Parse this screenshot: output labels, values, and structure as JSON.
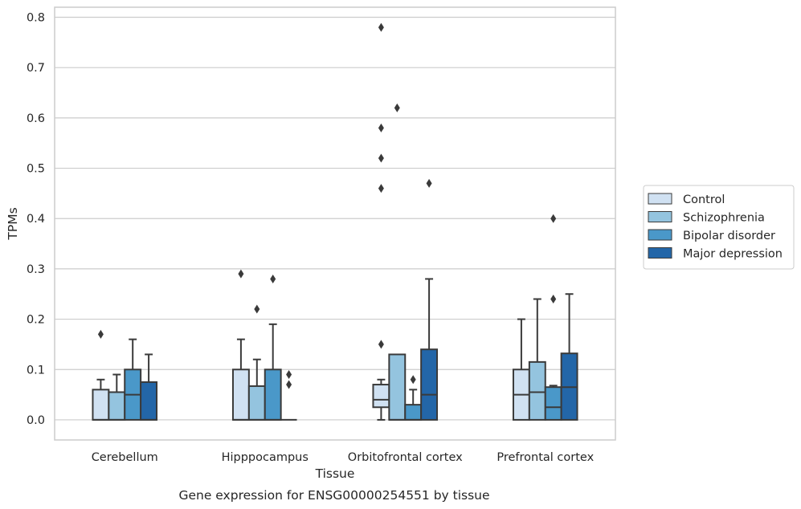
{
  "chart_data": {
    "type": "box",
    "title": "",
    "caption": "Gene expression for ENSG00000254551 by tissue",
    "xlabel": "Tissue",
    "ylabel": "TPMs",
    "ylim": [
      -0.04,
      0.82
    ],
    "yticks": [
      "0.0",
      "0.1",
      "0.2",
      "0.3",
      "0.4",
      "0.5",
      "0.6",
      "0.7",
      "0.8"
    ],
    "ytick_values": [
      0,
      0.1,
      0.2,
      0.3,
      0.4,
      0.5,
      0.6,
      0.7,
      0.8
    ],
    "grid": "horizontal",
    "legend_position": "right",
    "categories": [
      "Cerebellum",
      "Hipppocampus",
      "Orbitofrontal cortex",
      "Prefrontal cortex"
    ],
    "series": [
      {
        "name": "Control",
        "color": "#d0e1f2",
        "boxes": [
          {
            "q1": 0.0,
            "median": 0.0,
            "q3": 0.06,
            "whislo": 0.0,
            "whishi": 0.08,
            "fliers": [
              0.17
            ]
          },
          {
            "q1": 0.0,
            "median": 0.0,
            "q3": 0.1,
            "whislo": 0.0,
            "whishi": 0.16,
            "fliers": [
              0.29
            ]
          },
          {
            "q1": 0.025,
            "median": 0.04,
            "q3": 0.07,
            "whislo": 0.0,
            "whishi": 0.08,
            "fliers": [
              0.15,
              0.46,
              0.52,
              0.58,
              0.78
            ]
          },
          {
            "q1": 0.0,
            "median": 0.05,
            "q3": 0.1,
            "whislo": 0.0,
            "whishi": 0.2,
            "fliers": []
          }
        ]
      },
      {
        "name": "Schizophrenia",
        "color": "#94c4df",
        "boxes": [
          {
            "q1": 0.0,
            "median": 0.0,
            "q3": 0.055,
            "whislo": 0.0,
            "whishi": 0.09,
            "fliers": []
          },
          {
            "q1": 0.0,
            "median": 0.0,
            "q3": 0.067,
            "whislo": 0.0,
            "whishi": 0.12,
            "fliers": [
              0.22
            ]
          },
          {
            "q1": 0.0,
            "median": 0.0,
            "q3": 0.13,
            "whislo": 0.0,
            "whishi": 0.13,
            "fliers": [
              0.62
            ]
          },
          {
            "q1": 0.0,
            "median": 0.055,
            "q3": 0.115,
            "whislo": 0.0,
            "whishi": 0.24,
            "fliers": []
          }
        ]
      },
      {
        "name": "Bipolar disorder",
        "color": "#4a98c9",
        "boxes": [
          {
            "q1": 0.0,
            "median": 0.05,
            "q3": 0.1,
            "whislo": 0.0,
            "whishi": 0.16,
            "fliers": []
          },
          {
            "q1": 0.0,
            "median": 0.0,
            "q3": 0.1,
            "whislo": 0.0,
            "whishi": 0.19,
            "fliers": [
              0.28
            ]
          },
          {
            "q1": 0.0,
            "median": 0.0,
            "q3": 0.03,
            "whislo": 0.0,
            "whishi": 0.06,
            "fliers": [
              0.08
            ]
          },
          {
            "q1": 0.0,
            "median": 0.025,
            "q3": 0.065,
            "whislo": 0.0,
            "whishi": 0.068,
            "fliers": [
              0.24,
              0.4
            ]
          }
        ]
      },
      {
        "name": "Major depression",
        "color": "#2366a8",
        "boxes": [
          {
            "q1": 0.0,
            "median": 0.0,
            "q3": 0.075,
            "whislo": 0.0,
            "whishi": 0.13,
            "fliers": []
          },
          {
            "q1": 0.0,
            "median": 0.0,
            "q3": 0.0,
            "whislo": 0.0,
            "whishi": 0.0,
            "fliers": [
              0.07,
              0.09
            ]
          },
          {
            "q1": 0.0,
            "median": 0.05,
            "q3": 0.14,
            "whislo": 0.0,
            "whishi": 0.28,
            "fliers": [
              0.47
            ]
          },
          {
            "q1": 0.0,
            "median": 0.065,
            "q3": 0.132,
            "whislo": 0.0,
            "whishi": 0.25,
            "fliers": []
          }
        ]
      }
    ]
  }
}
